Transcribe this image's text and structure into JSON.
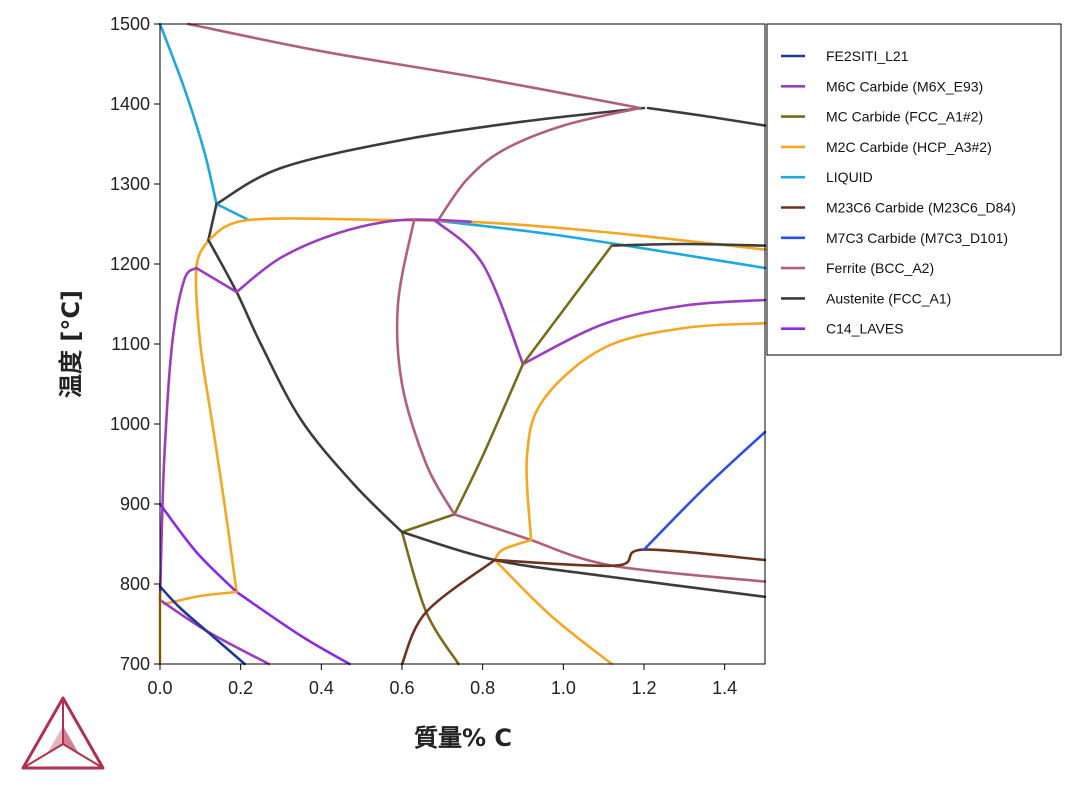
{
  "chart_data": {
    "type": "line",
    "title": "",
    "xlabel": "質量% C",
    "ylabel": "温度 [°C]",
    "xlim": [
      0,
      1.5
    ],
    "ylim": [
      700,
      1500
    ],
    "xticks": [
      "0.0",
      "0.2",
      "0.4",
      "0.6",
      "0.8",
      "1.0",
      "1.2",
      "1.4"
    ],
    "yticks": [
      "700",
      "800",
      "900",
      "1000",
      "1100",
      "1200",
      "1300",
      "1400",
      "1500"
    ],
    "grid": false,
    "legend_position": "top-right",
    "phases": [
      {
        "name": "FE2SITI_L21",
        "color": "#1f3a8f"
      },
      {
        "name": "M6C Carbide (M6X_E93)",
        "color": "#9b3dbf"
      },
      {
        "name": "MC Carbide (FCC_A1#2)",
        "color": "#7a6a1c"
      },
      {
        "name": "M2C Carbide (HCP_A3#2)",
        "color": "#f5a623"
      },
      {
        "name": "LIQUID",
        "color": "#1ea8e0"
      },
      {
        "name": "M23C6 Carbide (M23C6_D84)",
        "color": "#6b3420"
      },
      {
        "name": "M7C3 Carbide (M7C3_D101)",
        "color": "#2a4fe8"
      },
      {
        "name": "Ferrite (BCC_A2)",
        "color": "#b0607a"
      },
      {
        "name": "Austenite (FCC_A1)",
        "color": "#3c3c3c"
      },
      {
        "name": "C14_LAVES",
        "color": "#8a2be2"
      }
    ],
    "series": [
      {
        "name": "Ferrite (BCC_A2)",
        "color": "#b0607a",
        "points": [
          [
            0.07,
            1500
          ],
          [
            0.4,
            1466
          ],
          [
            0.8,
            1432
          ],
          [
            1.19,
            1395
          ]
        ]
      },
      {
        "name": "Austenite (FCC_A1)",
        "color": "#3c3c3c",
        "points": [
          [
            1.21,
            1395
          ],
          [
            1.35,
            1385
          ],
          [
            1.5,
            1373
          ]
        ]
      },
      {
        "name": "Austenite (FCC_A1)",
        "color": "#3c3c3c",
        "points": [
          [
            0.14,
            1275
          ],
          [
            0.3,
            1320
          ],
          [
            0.6,
            1355
          ],
          [
            0.9,
            1378
          ],
          [
            1.2,
            1395
          ]
        ]
      },
      {
        "name": "Ferrite (BCC_A2)",
        "color": "#b0607a",
        "points": [
          [
            0.69,
            1255
          ],
          [
            0.76,
            1305
          ],
          [
            0.85,
            1342
          ],
          [
            1.0,
            1373
          ],
          [
            1.19,
            1395
          ]
        ]
      },
      {
        "name": "LIQUID",
        "color": "#1ea8e0",
        "points": [
          [
            0.0,
            1500
          ],
          [
            0.06,
            1420
          ],
          [
            0.11,
            1340
          ],
          [
            0.14,
            1275
          ]
        ]
      },
      {
        "name": "LIQUID",
        "color": "#1ea8e0",
        "points": [
          [
            0.14,
            1275
          ],
          [
            0.22,
            1255
          ]
        ]
      },
      {
        "name": "LIQUID",
        "color": "#1ea8e0",
        "points": [
          [
            0.67,
            1255
          ],
          [
            1.0,
            1235
          ],
          [
            1.5,
            1195
          ]
        ]
      },
      {
        "name": "Austenite (FCC_A1)",
        "color": "#3c3c3c",
        "points": [
          [
            0.14,
            1275
          ],
          [
            0.12,
            1230
          ]
        ]
      },
      {
        "name": "M2C Carbide (HCP_A3#2)",
        "color": "#f5a623",
        "points": [
          [
            0.12,
            1230
          ],
          [
            0.22,
            1255
          ],
          [
            0.56,
            1255
          ],
          [
            0.8,
            1252
          ],
          [
            1.1,
            1240
          ],
          [
            1.5,
            1218
          ]
        ]
      },
      {
        "name": "Austenite (FCC_A1)",
        "color": "#3c3c3c",
        "points": [
          [
            1.12,
            1223
          ],
          [
            1.3,
            1225
          ],
          [
            1.5,
            1223
          ]
        ]
      },
      {
        "name": "M2C Carbide (HCP_A3#2)",
        "color": "#f5a623",
        "points": [
          [
            0.12,
            1230
          ],
          [
            0.09,
            1195
          ],
          [
            0.1,
            1100
          ],
          [
            0.13,
            1000
          ],
          [
            0.16,
            900
          ],
          [
            0.19,
            790
          ]
        ]
      },
      {
        "name": "Austenite (FCC_A1)",
        "color": "#3c3c3c",
        "points": [
          [
            0.12,
            1230
          ],
          [
            0.19,
            1165
          ],
          [
            0.25,
            1100
          ],
          [
            0.35,
            1005
          ],
          [
            0.48,
            925
          ],
          [
            0.6,
            865
          ]
        ]
      },
      {
        "name": "M6C Carbide (M6X_E93)",
        "color": "#9b3dbf",
        "points": [
          [
            0.0,
            780
          ],
          [
            0.01,
            950
          ],
          [
            0.03,
            1100
          ],
          [
            0.06,
            1180
          ],
          [
            0.09,
            1195
          ]
        ]
      },
      {
        "name": "M6C Carbide (M6X_E93)",
        "color": "#9b3dbf",
        "points": [
          [
            0.09,
            1195
          ],
          [
            0.19,
            1165
          ]
        ]
      },
      {
        "name": "M6C Carbide (M6X_E93)",
        "color": "#9b3dbf",
        "points": [
          [
            0.19,
            1165
          ],
          [
            0.3,
            1208
          ],
          [
            0.45,
            1240
          ],
          [
            0.6,
            1255
          ],
          [
            0.77,
            1253
          ]
        ]
      },
      {
        "name": "M6C Carbide (M6X_E93)",
        "color": "#9b3dbf",
        "points": [
          [
            0.68,
            1255
          ],
          [
            0.8,
            1200
          ],
          [
            0.9,
            1075
          ]
        ]
      },
      {
        "name": "M6C Carbide (M6X_E93)",
        "color": "#9b3dbf",
        "points": [
          [
            0.9,
            1075
          ],
          [
            1.1,
            1125
          ],
          [
            1.3,
            1148
          ],
          [
            1.5,
            1155
          ]
        ]
      },
      {
        "name": "MC Carbide (FCC_A1#2)",
        "color": "#7a6a1c",
        "points": [
          [
            0.9,
            1075
          ],
          [
            1.12,
            1223
          ]
        ]
      },
      {
        "name": "MC Carbide (FCC_A1#2)",
        "color": "#7a6a1c",
        "points": [
          [
            0.9,
            1075
          ],
          [
            0.8,
            960
          ],
          [
            0.73,
            887
          ]
        ]
      },
      {
        "name": "MC Carbide (FCC_A1#2)",
        "color": "#7a6a1c",
        "points": [
          [
            0.6,
            865
          ],
          [
            0.73,
            887
          ]
        ]
      },
      {
        "name": "MC Carbide (FCC_A1#2)",
        "color": "#7a6a1c",
        "points": [
          [
            0.6,
            865
          ],
          [
            0.66,
            765
          ],
          [
            0.74,
            700
          ]
        ]
      },
      {
        "name": "Ferrite (BCC_A2)",
        "color": "#b0607a",
        "points": [
          [
            0.63,
            1255
          ],
          [
            0.59,
            1150
          ],
          [
            0.6,
            1050
          ],
          [
            0.66,
            950
          ],
          [
            0.73,
            887
          ]
        ]
      },
      {
        "name": "Ferrite (BCC_A2)",
        "color": "#b0607a",
        "points": [
          [
            0.73,
            887
          ],
          [
            0.92,
            855
          ]
        ]
      },
      {
        "name": "Ferrite (BCC_A2)",
        "color": "#b0607a",
        "points": [
          [
            0.92,
            855
          ],
          [
            1.12,
            823
          ],
          [
            1.5,
            803
          ]
        ]
      },
      {
        "name": "M2C Carbide (HCP_A3#2)",
        "color": "#f5a623",
        "points": [
          [
            0.92,
            855
          ],
          [
            0.91,
            960
          ],
          [
            0.95,
            1030
          ],
          [
            1.1,
            1095
          ],
          [
            1.3,
            1120
          ],
          [
            1.5,
            1126
          ]
        ]
      },
      {
        "name": "M2C Carbide (HCP_A3#2)",
        "color": "#f5a623",
        "points": [
          [
            0.92,
            855
          ],
          [
            0.85,
            843
          ],
          [
            0.83,
            830
          ]
        ]
      },
      {
        "name": "M2C Carbide (HCP_A3#2)",
        "color": "#f5a623",
        "points": [
          [
            0.83,
            830
          ],
          [
            0.97,
            760
          ],
          [
            1.12,
            700
          ]
        ]
      },
      {
        "name": "Austenite (FCC_A1)",
        "color": "#3c3c3c",
        "points": [
          [
            0.6,
            865
          ],
          [
            0.83,
            830
          ],
          [
            1.1,
            810
          ],
          [
            1.5,
            784
          ]
        ]
      },
      {
        "name": "M23C6 Carbide (M23C6_D84)",
        "color": "#6b3420",
        "points": [
          [
            0.83,
            830
          ],
          [
            1.13,
            823
          ],
          [
            1.2,
            843
          ],
          [
            1.5,
            830
          ]
        ]
      },
      {
        "name": "M23C6 Carbide (M23C6_D84)",
        "color": "#6b3420",
        "points": [
          [
            0.83,
            830
          ],
          [
            0.66,
            765
          ],
          [
            0.6,
            700
          ]
        ]
      },
      {
        "name": "M7C3 Carbide (M7C3_D101)",
        "color": "#2a4fe8",
        "points": [
          [
            1.2,
            843
          ],
          [
            1.35,
            920
          ],
          [
            1.5,
            990
          ]
        ]
      },
      {
        "name": "C14_LAVES",
        "color": "#8a2be2",
        "points": [
          [
            0.0,
            900
          ],
          [
            0.09,
            840
          ],
          [
            0.19,
            790
          ]
        ]
      },
      {
        "name": "C14_LAVES",
        "color": "#8a2be2",
        "points": [
          [
            0.19,
            790
          ],
          [
            0.35,
            735
          ],
          [
            0.47,
            700
          ]
        ]
      },
      {
        "name": "M2C Carbide (HCP_A3#2)",
        "color": "#f5a623",
        "points": [
          [
            0.19,
            790
          ],
          [
            0.1,
            785
          ],
          [
            0.01,
            775
          ]
        ]
      },
      {
        "name": "M6C Carbide (M6X_E93)",
        "color": "#9b3dbf",
        "points": [
          [
            0.0,
            780
          ],
          [
            0.12,
            740
          ],
          [
            0.27,
            700
          ]
        ]
      },
      {
        "name": "FE2SITI_L21",
        "color": "#1f3a8f",
        "points": [
          [
            0.0,
            797
          ],
          [
            0.05,
            770
          ],
          [
            0.13,
            735
          ],
          [
            0.21,
            700
          ]
        ]
      },
      {
        "name": "M2C Carbide (HCP_A3#2)",
        "color": "#f5a623",
        "points": [
          [
            0.0,
            790
          ],
          [
            0.0,
            700
          ]
        ]
      }
    ]
  }
}
